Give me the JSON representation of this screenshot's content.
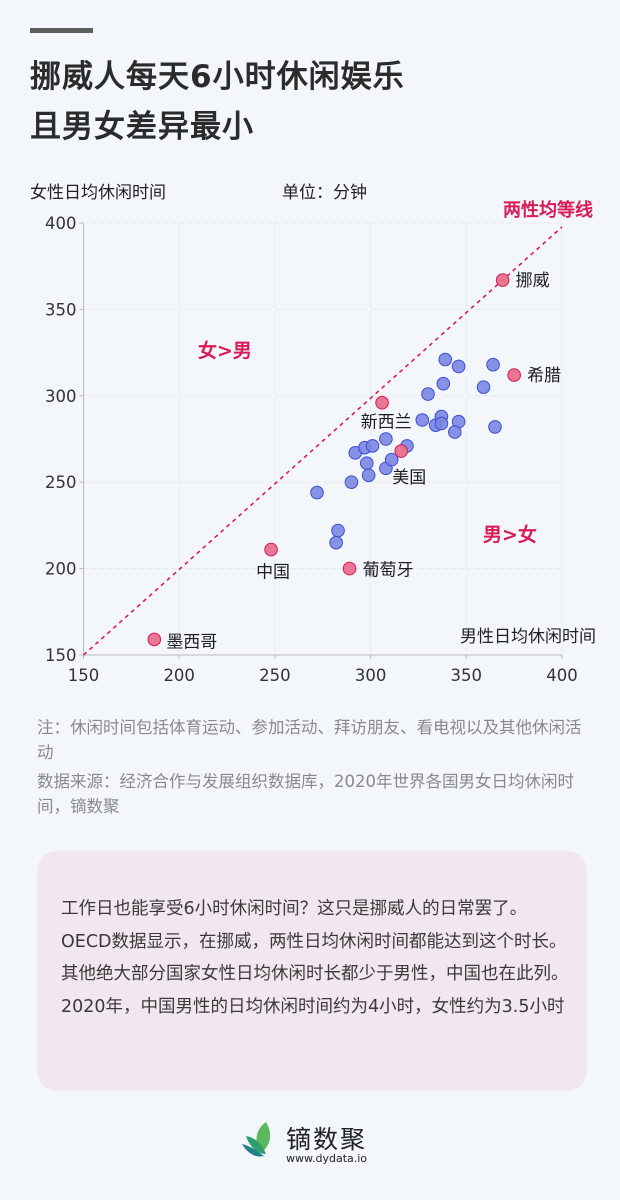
{
  "header": {
    "title_line1": "挪威人每天6小时休闲娱乐",
    "title_line2": "且男女差异最小"
  },
  "chart_labels": {
    "ylabel": "女性日均休闲时间",
    "unit": "单位：分钟",
    "xlabel": "男性日均休闲时间",
    "equality_line": "两性均等线",
    "region_female_more": "女>男",
    "region_male_more": "男>女"
  },
  "chart_data": {
    "type": "scatter",
    "title": "挪威人每天6小时休闲娱乐 且男女差异最小",
    "xlabel": "男性日均休闲时间",
    "ylabel": "女性日均休闲时间",
    "unit": "分钟",
    "xlim": [
      150,
      400
    ],
    "ylim": [
      150,
      400
    ],
    "xticks": [
      150,
      200,
      250,
      300,
      350,
      400
    ],
    "yticks": [
      150,
      200,
      250,
      300,
      350,
      400
    ],
    "grid": true,
    "reference_line": {
      "label": "两性均等线",
      "from": [
        150,
        150
      ],
      "to": [
        400,
        400
      ],
      "style": "dashed"
    },
    "annotations": [
      {
        "text": "女>男",
        "region": "above line"
      },
      {
        "text": "男>女",
        "region": "below line"
      }
    ],
    "series": [
      {
        "name": "highlighted",
        "color": "#e8708e",
        "points": [
          {
            "label": "挪威",
            "x": 369,
            "y": 367
          },
          {
            "label": "希腊",
            "x": 375,
            "y": 312
          },
          {
            "label": "新西兰",
            "x": 306,
            "y": 296
          },
          {
            "label": "美国",
            "x": 316,
            "y": 268
          },
          {
            "label": "中国",
            "x": 248,
            "y": 211
          },
          {
            "label": "葡萄牙",
            "x": 289,
            "y": 200
          },
          {
            "label": "墨西哥",
            "x": 187,
            "y": 159
          }
        ]
      },
      {
        "name": "other",
        "color": "#7b86e2",
        "points": [
          {
            "x": 272,
            "y": 244
          },
          {
            "x": 290,
            "y": 250
          },
          {
            "x": 299,
            "y": 254
          },
          {
            "x": 308,
            "y": 258
          },
          {
            "x": 298,
            "y": 261
          },
          {
            "x": 311,
            "y": 263
          },
          {
            "x": 292,
            "y": 267
          },
          {
            "x": 297,
            "y": 270
          },
          {
            "x": 301,
            "y": 271
          },
          {
            "x": 319,
            "y": 271
          },
          {
            "x": 308,
            "y": 275
          },
          {
            "x": 327,
            "y": 286
          },
          {
            "x": 334,
            "y": 283
          },
          {
            "x": 337,
            "y": 288
          },
          {
            "x": 337,
            "y": 284
          },
          {
            "x": 346,
            "y": 285
          },
          {
            "x": 344,
            "y": 279
          },
          {
            "x": 365,
            "y": 282
          },
          {
            "x": 330,
            "y": 301
          },
          {
            "x": 338,
            "y": 307
          },
          {
            "x": 359,
            "y": 305
          },
          {
            "x": 339,
            "y": 321
          },
          {
            "x": 346,
            "y": 317
          },
          {
            "x": 364,
            "y": 318
          },
          {
            "x": 283,
            "y": 222
          },
          {
            "x": 282,
            "y": 215
          }
        ]
      }
    ]
  },
  "notes": {
    "note": "注：休闲时间包括体育运动、参加活动、拜访朋友、看电视以及其他休闲活动",
    "source": "数据来源：经济合作与发展组织数据库，2020年世界各国男女日均休闲时间，镝数聚"
  },
  "summary": {
    "text": "工作日也能享受6小时休闲时间？这只是挪威人的日常罢了。OECD数据显示，在挪威，两性日均休闲时间都能达到这个时长。其他绝大部分国家女性日均休闲时长都少于男性，中国也在此列。2020年，中国男性的日均休闲时间约为4小时，女性约为3.5小时"
  },
  "footer": {
    "brand": "镝数聚",
    "url": "www.dydata.io"
  },
  "colors": {
    "accent": "#d81b55",
    "blue_point": "#7b86e2",
    "pink_point": "#e8708e",
    "background": "#f3f6fa",
    "card": "#f2e7ee"
  }
}
